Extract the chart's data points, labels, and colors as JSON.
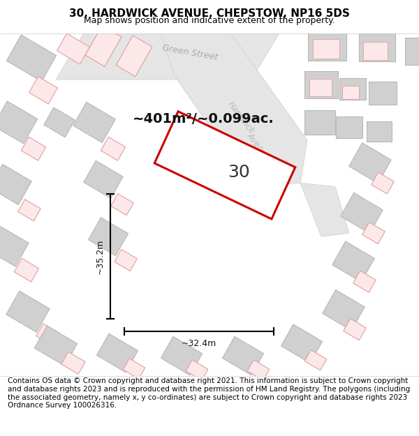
{
  "title": "30, HARDWICK AVENUE, CHEPSTOW, NP16 5DS",
  "subtitle": "Map shows position and indicative extent of the property.",
  "footer": "Contains OS data © Crown copyright and database right 2021. This information is subject to Crown copyright and database rights 2023 and is reproduced with the permission of HM Land Registry. The polygons (including the associated geometry, namely x, y co-ordinates) are subject to Crown copyright and database rights 2023 Ordnance Survey 100026316.",
  "area_label": "~401m²/~0.099ac.",
  "width_label": "~32.4m",
  "height_label": "~35.2m",
  "number_label": "30",
  "map_bg": "#ffffff",
  "highlight_stroke": "#cc0000",
  "highlight_fill": "#ffffff",
  "title_fontsize": 11,
  "subtitle_fontsize": 9,
  "footer_fontsize": 7.5
}
